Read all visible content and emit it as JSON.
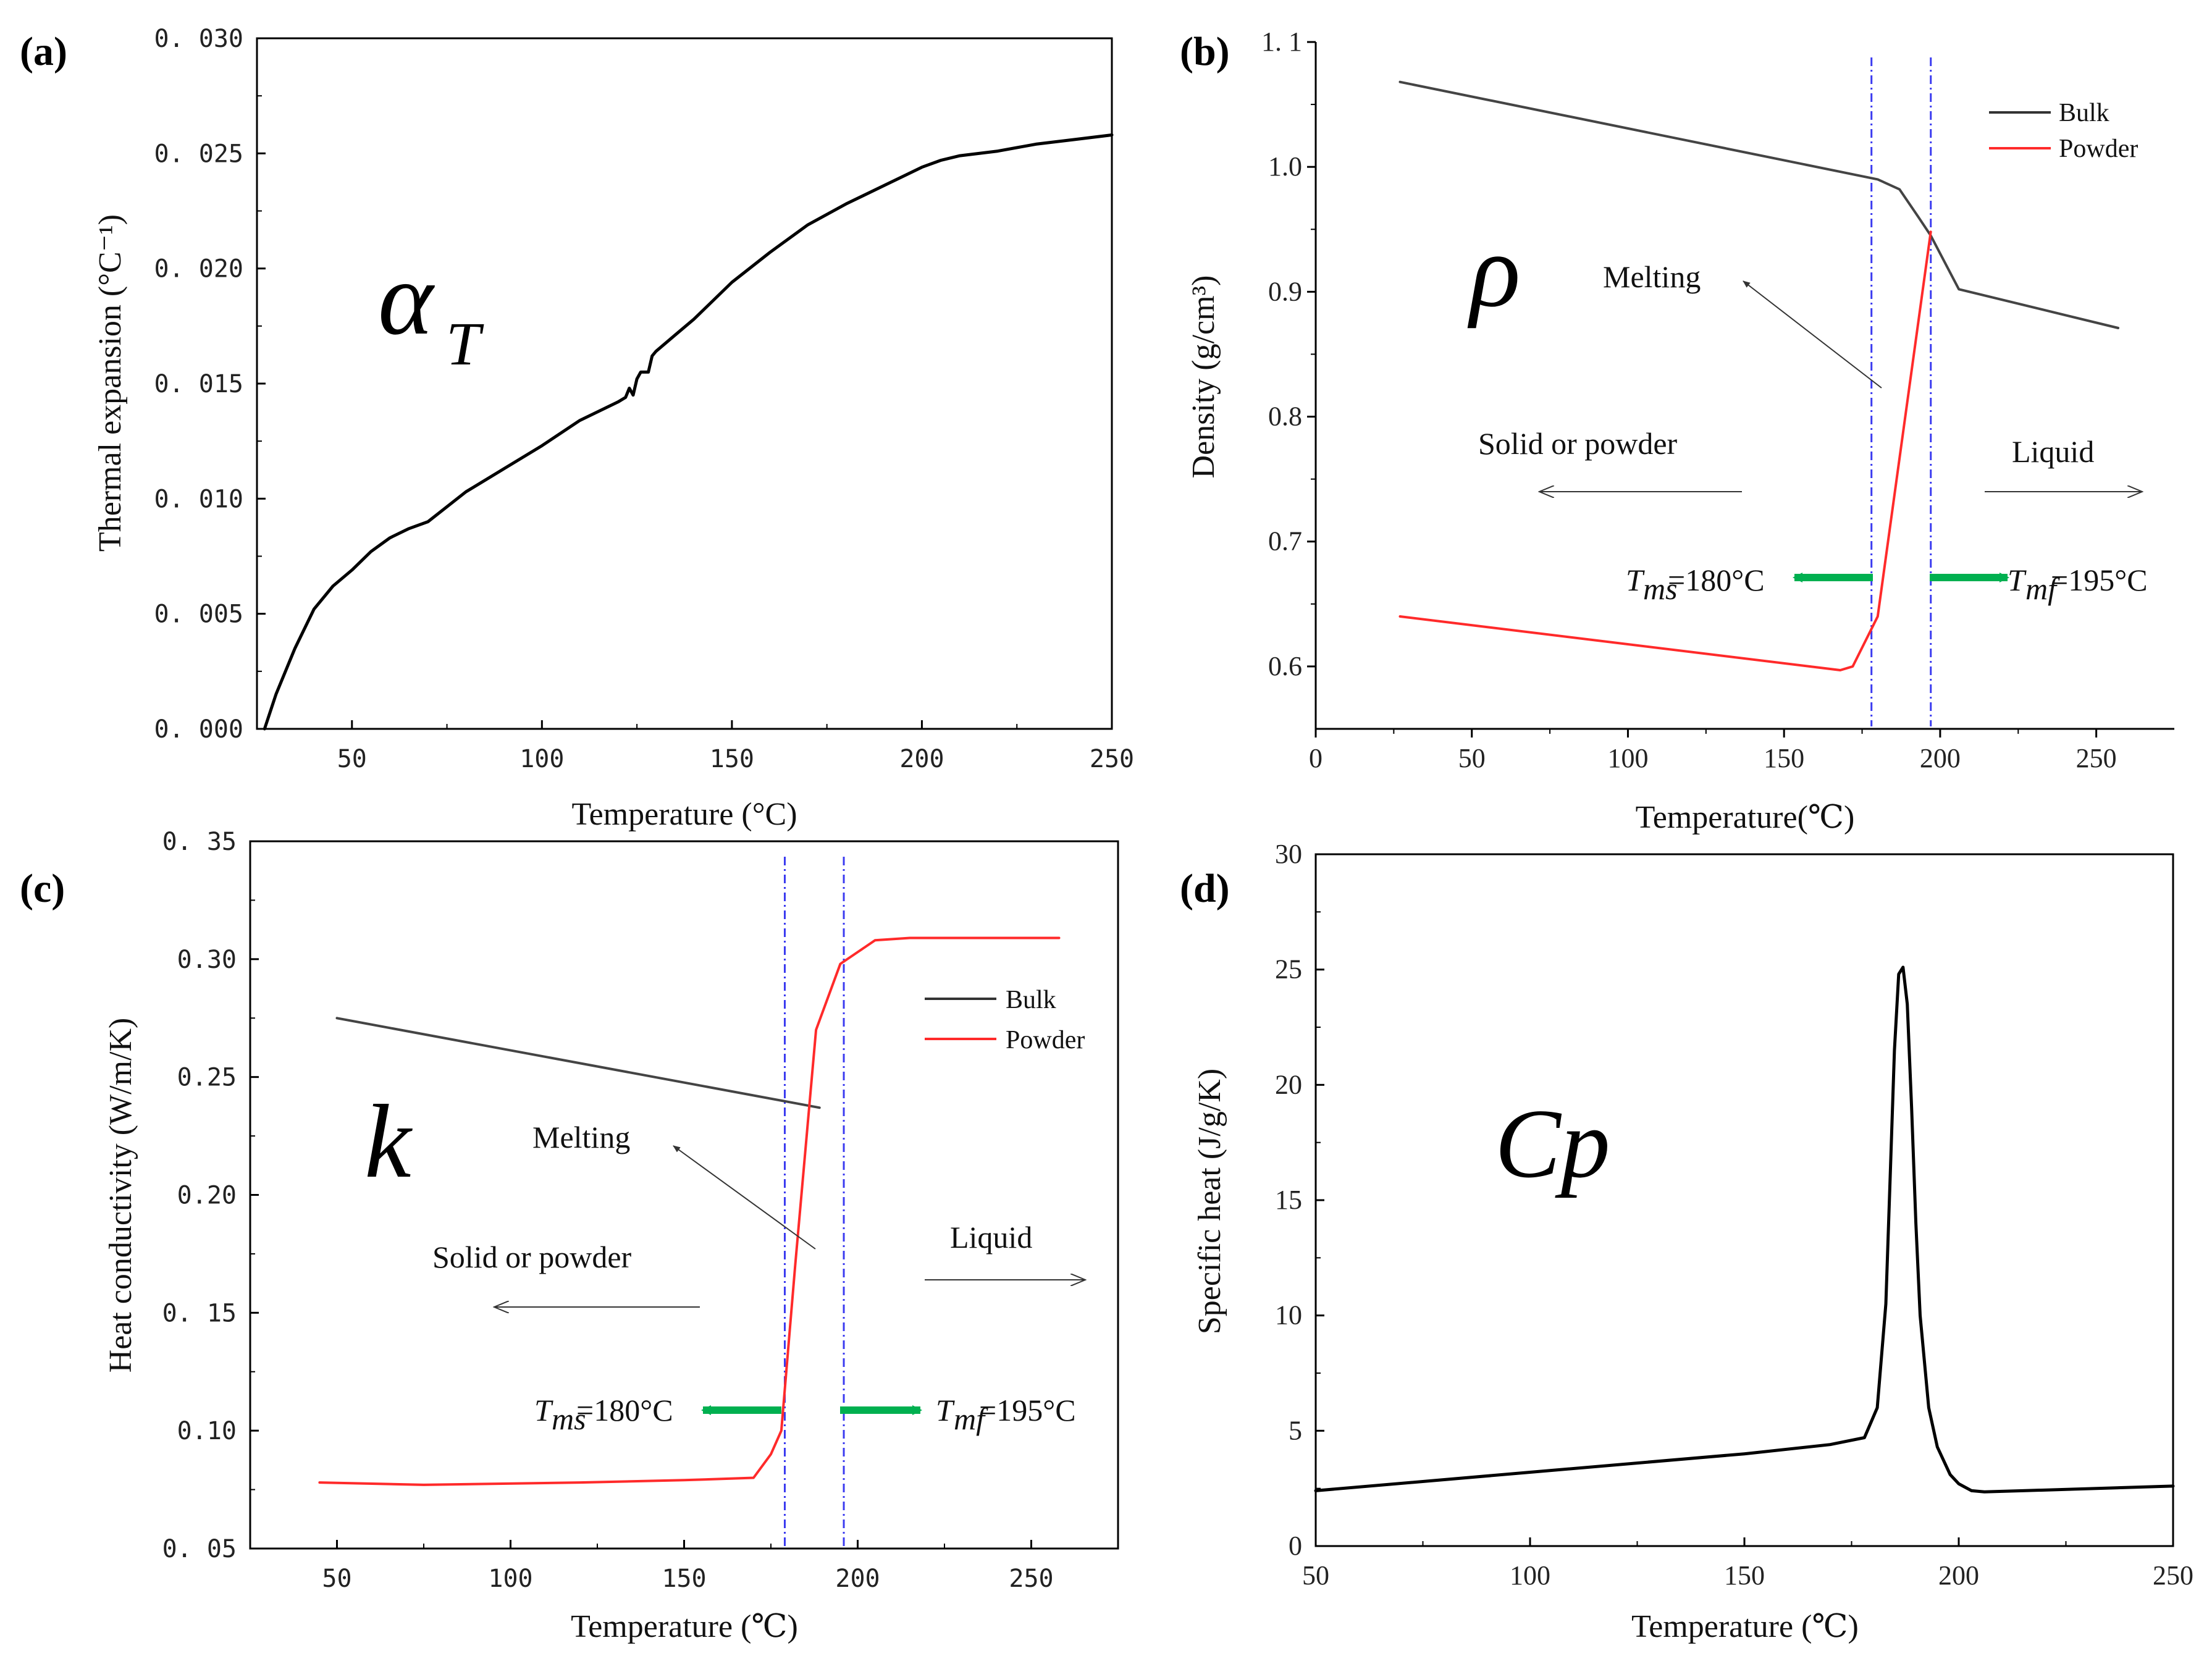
{
  "chart_data": [
    {
      "id": "a",
      "type": "line",
      "panel_label": "(a)",
      "symbol": "α",
      "symbol_sub": "T",
      "xlabel": "Temperature (°C)",
      "ylabel": "Thermal expansion (°C⁻¹)",
      "xlim": [
        25,
        250
      ],
      "ylim": [
        0.0,
        0.03
      ],
      "xticks": [
        50,
        100,
        150,
        200,
        250
      ],
      "xtick_labels": [
        "50",
        "100",
        "150",
        "200",
        "250"
      ],
      "yticks": [
        0.0,
        0.005,
        0.01,
        0.015,
        0.02,
        0.025,
        0.03
      ],
      "ytick_labels": [
        "0. 000",
        "0. 005",
        "0. 010",
        "0. 015",
        "0. 020",
        "0. 025",
        "0. 030"
      ],
      "series": [
        {
          "name": "alpha",
          "color": "#000000",
          "x": [
            27,
            30,
            35,
            40,
            45,
            50,
            55,
            60,
            65,
            70,
            80,
            90,
            100,
            110,
            120,
            122,
            123,
            124,
            125,
            126,
            128,
            129,
            130,
            135,
            140,
            150,
            160,
            170,
            180,
            190,
            195,
            200,
            205,
            210,
            220,
            230,
            240,
            250
          ],
          "y": [
            0.0,
            0.0015,
            0.0035,
            0.0052,
            0.0062,
            0.0069,
            0.0077,
            0.0083,
            0.0087,
            0.009,
            0.0103,
            0.0113,
            0.0123,
            0.0134,
            0.0142,
            0.0144,
            0.0148,
            0.0145,
            0.0152,
            0.0155,
            0.0155,
            0.0162,
            0.0164,
            0.0171,
            0.0178,
            0.0194,
            0.0207,
            0.0219,
            0.0228,
            0.0236,
            0.024,
            0.0244,
            0.0247,
            0.0249,
            0.0251,
            0.0254,
            0.0256,
            0.0258
          ]
        }
      ]
    },
    {
      "id": "b",
      "type": "line",
      "panel_label": "(b)",
      "symbol": "ρ",
      "xlabel": "Temperature(℃)",
      "ylabel": "Density (g/cm³)",
      "xlim": [
        0,
        275
      ],
      "ylim": [
        0.55,
        1.1
      ],
      "xticks": [
        0,
        50,
        100,
        150,
        200,
        250
      ],
      "xtick_labels": [
        "0",
        "50",
        "100",
        "150",
        "200",
        "250"
      ],
      "yticks": [
        0.6,
        0.7,
        0.8,
        0.9,
        1.0,
        1.1
      ],
      "ytick_labels": [
        "0.6",
        "0.7",
        "0.8",
        "0.9",
        "1.0",
        "1. 1"
      ],
      "legend": [
        {
          "name": "Bulk",
          "color": "#333333"
        },
        {
          "name": "Powder",
          "color": "#ff2a2a"
        }
      ],
      "series": [
        {
          "name": "Bulk",
          "color": "#444444",
          "x": [
            27,
            180,
            187,
            193,
            197,
            206,
            257
          ],
          "y": [
            1.068,
            0.99,
            0.982,
            0.96,
            0.945,
            0.902,
            0.871
          ]
        },
        {
          "name": "Powder",
          "color": "#ff2a2a",
          "x": [
            27,
            168,
            172,
            175,
            180,
            197
          ],
          "y": [
            0.64,
            0.597,
            0.6,
            0.615,
            0.64,
            0.948
          ]
        }
      ],
      "vlines": [
        178,
        197
      ],
      "annotations": {
        "melting": "Melting",
        "solid": "Solid or powder",
        "liquid": "Liquid",
        "tms_sym": "T",
        "tms_sub": "ms",
        "tms_value": " =180°C",
        "tmf_sym": "T",
        "tmf_sub": "mf",
        "tmf_value": "=195°C"
      }
    },
    {
      "id": "c",
      "type": "line",
      "panel_label": "(c)",
      "symbol": "k",
      "xlabel": "Temperature (℃)",
      "ylabel": "Heat conductivity (W/m/K)",
      "xlim": [
        25,
        275
      ],
      "ylim": [
        0.05,
        0.35
      ],
      "xticks": [
        50,
        100,
        150,
        200,
        250
      ],
      "xtick_labels": [
        "50",
        "100",
        "150",
        "200",
        "250"
      ],
      "yticks": [
        0.05,
        0.1,
        0.15,
        0.2,
        0.25,
        0.3,
        0.35
      ],
      "ytick_labels": [
        "0. 05",
        "0.10",
        "0. 15",
        "0.20",
        "0.25",
        "0.30",
        "0. 35"
      ],
      "legend": [
        {
          "name": "Bulk",
          "color": "#333333"
        },
        {
          "name": "Powder",
          "color": "#ff2a2a"
        }
      ],
      "series": [
        {
          "name": "Bulk",
          "color": "#444444",
          "x": [
            50,
            189
          ],
          "y": [
            0.275,
            0.237
          ]
        },
        {
          "name": "Powder",
          "color": "#ff2a2a",
          "x": [
            45,
            75,
            120,
            150,
            170,
            175,
            178,
            182,
            188,
            195,
            200,
            205,
            215,
            258
          ],
          "y": [
            0.078,
            0.077,
            0.078,
            0.079,
            0.08,
            0.09,
            0.1,
            0.17,
            0.27,
            0.298,
            0.303,
            0.308,
            0.309,
            0.309
          ]
        }
      ],
      "vlines": [
        179,
        196
      ],
      "annotations": {
        "melting": "Melting",
        "solid": "Solid or powder",
        "liquid": "Liquid",
        "tms_sym": "T",
        "tms_sub": "ms",
        "tms_value": " =180°C",
        "tmf_sym": "T",
        "tmf_sub": "mf",
        "tmf_value": "=195°C"
      }
    },
    {
      "id": "d",
      "type": "line",
      "panel_label": "(d)",
      "symbol": "Cp",
      "xlabel": "Temperature (℃)",
      "ylabel": "Specific heat (J/g/K)",
      "xlim": [
        50,
        250
      ],
      "ylim": [
        0,
        30
      ],
      "xticks": [
        50,
        100,
        150,
        200,
        250
      ],
      "xtick_labels": [
        "50",
        "100",
        "150",
        "200",
        "250"
      ],
      "yticks": [
        0,
        5,
        10,
        15,
        20,
        25,
        30
      ],
      "ytick_labels": [
        "0",
        "5",
        "10",
        "15",
        "20",
        "25",
        "30"
      ],
      "series": [
        {
          "name": "Cp",
          "color": "#000000",
          "x": [
            50,
            100,
            150,
            170,
            178,
            181,
            183,
            184,
            185,
            186,
            187,
            188,
            189,
            190,
            191,
            193,
            195,
            198,
            200,
            203,
            206,
            215,
            250
          ],
          "y": [
            2.4,
            3.2,
            4.0,
            4.4,
            4.7,
            6.0,
            10.5,
            16.0,
            21.5,
            24.8,
            25.1,
            23.5,
            19.0,
            14.0,
            10.0,
            6.0,
            4.3,
            3.1,
            2.7,
            2.4,
            2.35,
            2.4,
            2.6
          ]
        }
      ]
    }
  ]
}
